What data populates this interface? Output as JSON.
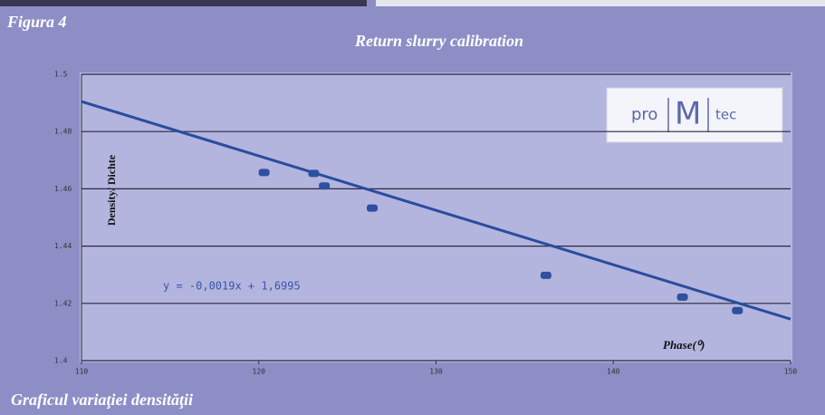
{
  "chart_data": {
    "type": "scatter",
    "figure_label": "Figura 4",
    "title": "Return slurry calibration",
    "ylabel": "Density/ Dichte",
    "xlabel": "Phase(⁰)",
    "caption": "Graficul variaţiei densităţii",
    "logo": [
      "pro",
      "M",
      "tec"
    ],
    "x": [
      120.3,
      123.1,
      123.7,
      126.4,
      136.2,
      143.9,
      147.0
    ],
    "values": [
      1.4657,
      1.4654,
      1.461,
      1.4533,
      1.4298,
      1.4222,
      1.4175
    ],
    "color": "#2f4fa0",
    "trendline": {
      "label": "y = -0,0019x + 1,6995",
      "slope": -0.0019,
      "intercept": 1.6995,
      "color": "#2a4c9e"
    },
    "xlim": [
      110,
      150
    ],
    "xticks": [
      110,
      120,
      130,
      140,
      150
    ],
    "ylim": [
      1.4,
      1.5
    ],
    "yticks": [
      1.4,
      1.42,
      1.44,
      1.46,
      1.48,
      1.5
    ],
    "grid": true
  }
}
